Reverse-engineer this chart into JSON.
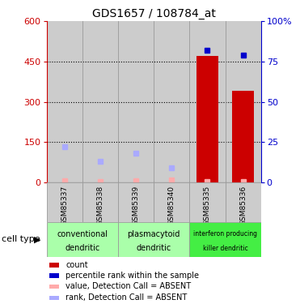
{
  "title": "GDS1657 / 108784_at",
  "samples": [
    "GSM85337",
    "GSM85338",
    "GSM85339",
    "GSM85340",
    "GSM85335",
    "GSM85336"
  ],
  "x_positions": [
    1,
    2,
    3,
    4,
    5,
    6
  ],
  "bar_values": [
    0,
    0,
    0,
    0,
    470,
    340
  ],
  "bar_color": "#cc0000",
  "rank_present_pct": [
    null,
    null,
    null,
    null,
    82,
    79
  ],
  "rank_absent_pct": [
    22,
    13,
    18,
    9,
    null,
    null
  ],
  "value_absent": [
    5,
    4,
    7,
    10,
    3,
    3
  ],
  "ylim_left": [
    0,
    600
  ],
  "ylim_right": [
    0,
    100
  ],
  "yticks_left": [
    0,
    150,
    300,
    450,
    600
  ],
  "yticks_right": [
    0,
    25,
    50,
    75,
    100
  ],
  "ytick_labels_right": [
    "0",
    "25",
    "50",
    "75",
    "100%"
  ],
  "left_tick_color": "#cc0000",
  "right_tick_color": "#0000cc",
  "group_labels_line1": [
    "conventional",
    "plasmacytoid",
    "interferon producing"
  ],
  "group_labels_line2": [
    "dendritic",
    "dendritic",
    "killer dendritic"
  ],
  "group_ranges": [
    [
      1,
      2
    ],
    [
      3,
      4
    ],
    [
      5,
      6
    ]
  ],
  "group_colors": [
    "#aaffaa",
    "#aaffaa",
    "#44ee44"
  ],
  "cell_type_label": "cell type",
  "legend_colors": [
    "#cc0000",
    "#0000cc",
    "#ffaaaa",
    "#aaaaff"
  ],
  "legend_labels": [
    "count",
    "percentile rank within the sample",
    "value, Detection Call = ABSENT",
    "rank, Detection Call = ABSENT"
  ],
  "bar_width": 0.6,
  "sample_bg_color": "#cccccc",
  "plot_bg_color": "#ffffff",
  "grid_line_color": "#000000",
  "dotted_yvals": [
    150,
    300,
    450
  ]
}
